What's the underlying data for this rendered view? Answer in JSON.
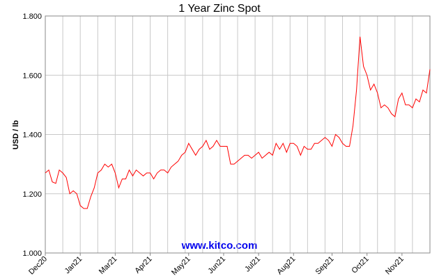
{
  "chart_data": {
    "type": "line",
    "title": "1 Year Zinc Spot",
    "y_label": "USD / lb",
    "watermark": "www.kitco.com",
    "categories": [
      "Dec20",
      null,
      null,
      null,
      null,
      null,
      null,
      null,
      null,
      null,
      "Jan21",
      null,
      null,
      null,
      null,
      null,
      null,
      null,
      null,
      null,
      "Mar21",
      null,
      null,
      null,
      null,
      null,
      null,
      null,
      null,
      null,
      "Apr21",
      null,
      null,
      null,
      null,
      null,
      null,
      null,
      null,
      null,
      null,
      "May21",
      null,
      null,
      null,
      null,
      null,
      null,
      null,
      null,
      null,
      "Jun21",
      null,
      null,
      null,
      null,
      null,
      null,
      null,
      null,
      null,
      "Jul21",
      null,
      null,
      null,
      null,
      null,
      null,
      null,
      null,
      null,
      "Aug21",
      null,
      null,
      null,
      null,
      null,
      null,
      null,
      null,
      null,
      null,
      "Sep21",
      null,
      null,
      null,
      null,
      null,
      null,
      null,
      null,
      null,
      "Oct21",
      null,
      null,
      null,
      null,
      null,
      null,
      null,
      null,
      null,
      "Nov21",
      null,
      null,
      null,
      null,
      null,
      null,
      null,
      null
    ],
    "values": [
      1.27,
      1.28,
      1.24,
      1.235,
      1.28,
      1.27,
      1.255,
      1.2,
      1.21,
      1.2,
      1.16,
      1.15,
      1.15,
      1.19,
      1.22,
      1.27,
      1.28,
      1.3,
      1.29,
      1.3,
      1.27,
      1.22,
      1.25,
      1.25,
      1.28,
      1.26,
      1.28,
      1.27,
      1.26,
      1.27,
      1.27,
      1.25,
      1.27,
      1.28,
      1.28,
      1.27,
      1.29,
      1.3,
      1.31,
      1.33,
      1.34,
      1.37,
      1.35,
      1.33,
      1.35,
      1.36,
      1.38,
      1.35,
      1.36,
      1.38,
      1.36,
      1.36,
      1.36,
      1.3,
      1.3,
      1.31,
      1.32,
      1.33,
      1.33,
      1.32,
      1.33,
      1.34,
      1.32,
      1.33,
      1.34,
      1.33,
      1.37,
      1.35,
      1.37,
      1.34,
      1.37,
      1.37,
      1.36,
      1.33,
      1.36,
      1.35,
      1.35,
      1.37,
      1.37,
      1.38,
      1.39,
      1.38,
      1.36,
      1.4,
      1.39,
      1.37,
      1.36,
      1.36,
      1.43,
      1.55,
      1.73,
      1.63,
      1.6,
      1.55,
      1.57,
      1.54,
      1.49,
      1.5,
      1.49,
      1.47,
      1.46,
      1.52,
      1.54,
      1.5,
      1.5,
      1.49,
      1.52,
      1.51,
      1.55,
      1.54,
      1.62
    ],
    "color": "#ff0000",
    "ylim": [
      1.0,
      1.8
    ],
    "yticks": [
      {
        "value": 1.0,
        "label": "1.000"
      },
      {
        "value": 1.2,
        "label": "1.200"
      },
      {
        "value": 1.4,
        "label": "1.400"
      },
      {
        "value": 1.6,
        "label": "1.600"
      },
      {
        "value": 1.8,
        "label": "1.800"
      }
    ],
    "grid": true
  }
}
